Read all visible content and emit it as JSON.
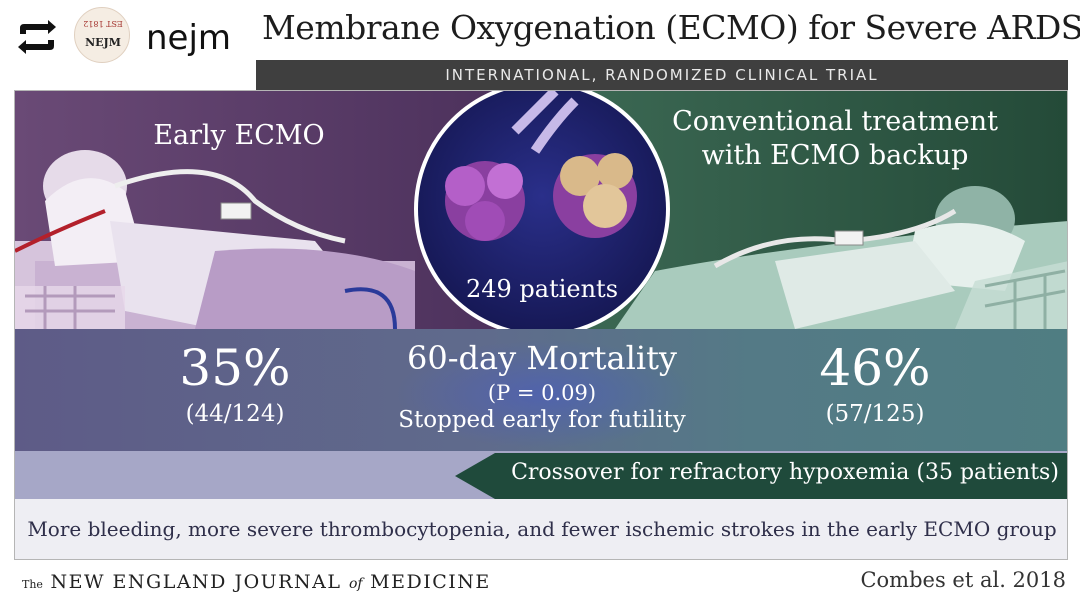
{
  "header": {
    "repost_icon": "repost-icon",
    "logo_text": "NEJM",
    "logo_seal_text": "EST 1812",
    "handle": "nejm"
  },
  "infographic": {
    "title": "Membrane Oxygenation (ECMO) for Severe ARDS",
    "subtitle": "INTERNATIONAL, RANDOMIZED CLINICAL TRIAL",
    "left_arm": "Early ECMO",
    "right_arm_line1": "Conventional treatment",
    "right_arm_line2": "with ECMO backup",
    "patients": "249 patients",
    "left_pct": "35%",
    "left_frac": "(44/124)",
    "center_title": "60-day Mortality",
    "center_p": "(P = 0.09)",
    "center_stop": "Stopped early for futility",
    "right_pct": "46%",
    "right_frac": "(57/125)",
    "crossover": "Crossover for refractory hypoxemia (35 patients)",
    "note": "More bleeding, more severe thrombocytopenia, and fewer ischemic strokes in the early ECMO group"
  },
  "footer": {
    "journal_the": "The",
    "journal_a": "NEW ENGLAND JOURNAL",
    "journal_of": "of",
    "journal_b": "MEDICINE",
    "citation": "Combes et al. 2018"
  },
  "colors": {
    "left_panel": "#5a3a66",
    "right_panel": "#2f5a45",
    "circle": "#1b1f6b",
    "crossover": "#1f4a3b"
  }
}
